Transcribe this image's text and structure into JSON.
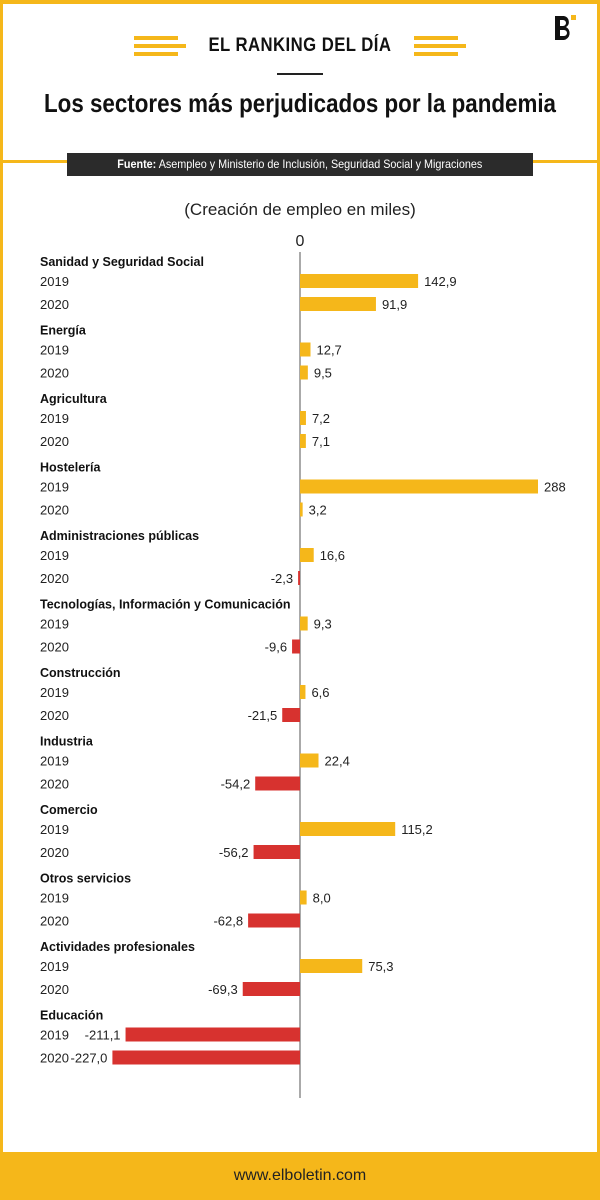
{
  "header": {
    "kicker": "EL RANKING DEL DÍA",
    "headline": "Los sectores más perjudicados por la pandemia",
    "source_label": "Fuente:",
    "source_text": "Asempleo y Ministerio de Inclusión, Seguridad Social y Migraciones"
  },
  "colors": {
    "positive": "#f5b71a",
    "negative": "#d7322f",
    "axis": "#aaaaaa",
    "accent": "#f5b71a"
  },
  "footer": {
    "url": "www.elboletin.com"
  },
  "chart_data": {
    "type": "bar",
    "orientation": "horizontal",
    "subtitle": "(Creación de empleo en miles)",
    "zero_label": "0",
    "value_labels": true,
    "groups": [
      {
        "name": "Sanidad y Seguridad Social",
        "rows": [
          {
            "year": "2019",
            "value": 142.9,
            "label": "142,9"
          },
          {
            "year": "2020",
            "value": 91.9,
            "label": "91,9"
          }
        ]
      },
      {
        "name": "Energía",
        "rows": [
          {
            "year": "2019",
            "value": 12.7,
            "label": "12,7"
          },
          {
            "year": "2020",
            "value": 9.5,
            "label": "9,5"
          }
        ]
      },
      {
        "name": "Agricultura",
        "rows": [
          {
            "year": "2019",
            "value": 7.2,
            "label": "7,2"
          },
          {
            "year": "2020",
            "value": 7.1,
            "label": "7,1"
          }
        ]
      },
      {
        "name": "Hostelería",
        "rows": [
          {
            "year": "2019",
            "value": 288,
            "label": "288"
          },
          {
            "year": "2020",
            "value": 3.2,
            "label": "3,2"
          }
        ]
      },
      {
        "name": "Administraciones públicas",
        "rows": [
          {
            "year": "2019",
            "value": 16.6,
            "label": "16,6"
          },
          {
            "year": "2020",
            "value": -2.3,
            "label": "-2,3"
          }
        ]
      },
      {
        "name": "Tecnologías, Información y Comunicación",
        "rows": [
          {
            "year": "2019",
            "value": 9.3,
            "label": "9,3"
          },
          {
            "year": "2020",
            "value": -9.6,
            "label": "-9,6"
          }
        ]
      },
      {
        "name": "Construcción",
        "rows": [
          {
            "year": "2019",
            "value": 6.6,
            "label": "6,6"
          },
          {
            "year": "2020",
            "value": -21.5,
            "label": "-21,5"
          }
        ]
      },
      {
        "name": "Industria",
        "rows": [
          {
            "year": "2019",
            "value": 22.4,
            "label": "22,4"
          },
          {
            "year": "2020",
            "value": -54.2,
            "label": "-54,2"
          }
        ]
      },
      {
        "name": "Comercio",
        "rows": [
          {
            "year": "2019",
            "value": 115.2,
            "label": "115,2"
          },
          {
            "year": "2020",
            "value": -56.2,
            "label": "-56,2"
          }
        ]
      },
      {
        "name": "Otros servicios",
        "rows": [
          {
            "year": "2019",
            "value": 8.0,
            "label": "8,0"
          },
          {
            "year": "2020",
            "value": -62.8,
            "label": "-62,8"
          }
        ]
      },
      {
        "name": "Actividades profesionales",
        "rows": [
          {
            "year": "2019",
            "value": 75.3,
            "label": "75,3"
          },
          {
            "year": "2020",
            "value": -69.3,
            "label": "-69,3"
          }
        ]
      },
      {
        "name": "Educación",
        "rows": [
          {
            "year": "2019",
            "value": -211.1,
            "label": "-211,1"
          },
          {
            "year": "2020",
            "value": -227.0,
            "label": "-227,0"
          }
        ]
      }
    ]
  }
}
